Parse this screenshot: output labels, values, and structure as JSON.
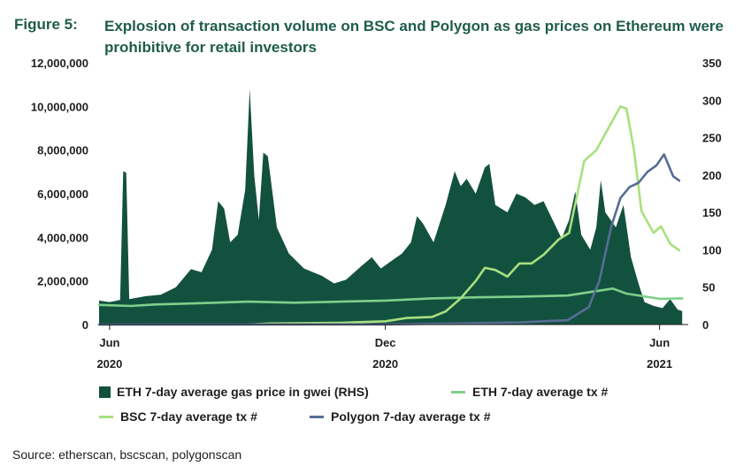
{
  "figure": {
    "label": "Figure 5:",
    "title": "Explosion of transaction volume on BSC and Polygon as gas prices on Ethereum were prohibitive for retail investors"
  },
  "source": "Source: etherscan, bscscan, polygonscan",
  "colors": {
    "gas": "#13513f",
    "eth": "#7fcf8a",
    "bsc": "#a9e07f",
    "polygon": "#566e94"
  },
  "chart_data": {
    "type": "area",
    "x_type": "date",
    "x_range": [
      "2020-05-25",
      "2021-06-20"
    ],
    "x_ticks": [
      {
        "date": "2020-06-01",
        "line1": "Jun",
        "line2": "2020"
      },
      {
        "date": "2020-12-01",
        "line1": "Dec",
        "line2": "2020"
      },
      {
        "date": "2021-06-01",
        "line1": "Jun",
        "line2": "2021"
      }
    ],
    "y_left": {
      "range": [
        0,
        12000000
      ],
      "ticks": [
        "0",
        "2,000,000",
        "4,000,000",
        "6,000,000",
        "8,000,000",
        "10,000,000",
        "12,000,000"
      ]
    },
    "y_right": {
      "range": [
        0,
        350
      ],
      "ticks": [
        "0",
        "50",
        "100",
        "150",
        "200",
        "250",
        "300",
        "350"
      ]
    },
    "grid": false,
    "legend_position": "bottom",
    "series": [
      {
        "name": "ETH 7-day average gas price in gwei (RHS)",
        "axis": "right",
        "style": "area",
        "color": "#13513f",
        "points": [
          [
            "2020-05-25",
            32
          ],
          [
            "2020-06-01",
            30
          ],
          [
            "2020-06-08",
            33
          ],
          [
            "2020-06-10",
            205
          ],
          [
            "2020-06-12",
            203
          ],
          [
            "2020-06-14",
            34
          ],
          [
            "2020-06-25",
            38
          ],
          [
            "2020-07-05",
            40
          ],
          [
            "2020-07-15",
            50
          ],
          [
            "2020-07-25",
            74
          ],
          [
            "2020-08-01",
            70
          ],
          [
            "2020-08-08",
            100
          ],
          [
            "2020-08-12",
            165
          ],
          [
            "2020-08-16",
            155
          ],
          [
            "2020-08-20",
            110
          ],
          [
            "2020-08-25",
            120
          ],
          [
            "2020-08-30",
            180
          ],
          [
            "2020-09-02",
            315
          ],
          [
            "2020-09-05",
            200
          ],
          [
            "2020-09-08",
            140
          ],
          [
            "2020-09-11",
            230
          ],
          [
            "2020-09-14",
            225
          ],
          [
            "2020-09-20",
            130
          ],
          [
            "2020-09-28",
            95
          ],
          [
            "2020-10-08",
            75
          ],
          [
            "2020-10-20",
            65
          ],
          [
            "2020-10-28",
            55
          ],
          [
            "2020-11-05",
            60
          ],
          [
            "2020-11-15",
            78
          ],
          [
            "2020-11-22",
            90
          ],
          [
            "2020-11-28",
            75
          ],
          [
            "2020-12-05",
            85
          ],
          [
            "2020-12-12",
            95
          ],
          [
            "2020-12-18",
            110
          ],
          [
            "2020-12-22",
            145
          ],
          [
            "2020-12-26",
            135
          ],
          [
            "2021-01-02",
            110
          ],
          [
            "2021-01-10",
            160
          ],
          [
            "2021-01-16",
            205
          ],
          [
            "2021-01-20",
            185
          ],
          [
            "2021-01-24",
            195
          ],
          [
            "2021-01-30",
            175
          ],
          [
            "2021-02-05",
            210
          ],
          [
            "2021-02-08",
            215
          ],
          [
            "2021-02-12",
            160
          ],
          [
            "2021-02-20",
            150
          ],
          [
            "2021-02-26",
            175
          ],
          [
            "2021-03-04",
            170
          ],
          [
            "2021-03-10",
            160
          ],
          [
            "2021-03-16",
            165
          ],
          [
            "2021-03-22",
            140
          ],
          [
            "2021-03-28",
            115
          ],
          [
            "2021-04-02",
            140
          ],
          [
            "2021-04-06",
            178
          ],
          [
            "2021-04-10",
            120
          ],
          [
            "2021-04-16",
            100
          ],
          [
            "2021-04-20",
            130
          ],
          [
            "2021-04-23",
            193
          ],
          [
            "2021-04-26",
            150
          ],
          [
            "2021-05-03",
            130
          ],
          [
            "2021-05-08",
            160
          ],
          [
            "2021-05-13",
            90
          ],
          [
            "2021-05-18",
            55
          ],
          [
            "2021-05-22",
            30
          ],
          [
            "2021-05-28",
            25
          ],
          [
            "2021-06-03",
            22
          ],
          [
            "2021-06-08",
            34
          ],
          [
            "2021-06-13",
            20
          ],
          [
            "2021-06-16",
            18
          ]
        ]
      },
      {
        "name": "ETH 7-day average tx #",
        "axis": "left",
        "style": "line",
        "color": "#7fcf8a",
        "points": [
          [
            "2020-05-25",
            900000
          ],
          [
            "2020-06-15",
            850000
          ],
          [
            "2020-07-01",
            920000
          ],
          [
            "2020-08-01",
            980000
          ],
          [
            "2020-09-01",
            1050000
          ],
          [
            "2020-10-01",
            1000000
          ],
          [
            "2020-11-01",
            1050000
          ],
          [
            "2020-12-01",
            1100000
          ],
          [
            "2021-01-01",
            1200000
          ],
          [
            "2021-02-01",
            1250000
          ],
          [
            "2021-03-01",
            1280000
          ],
          [
            "2021-04-01",
            1330000
          ],
          [
            "2021-05-01",
            1650000
          ],
          [
            "2021-05-10",
            1420000
          ],
          [
            "2021-06-01",
            1180000
          ],
          [
            "2021-06-16",
            1200000
          ]
        ]
      },
      {
        "name": "BSC 7-day average tx #",
        "axis": "left",
        "style": "line",
        "color": "#a9e07f",
        "points": [
          [
            "2020-09-01",
            0
          ],
          [
            "2020-09-15",
            50000
          ],
          [
            "2020-10-01",
            60000
          ],
          [
            "2020-11-01",
            80000
          ],
          [
            "2020-12-01",
            150000
          ],
          [
            "2020-12-15",
            300000
          ],
          [
            "2021-01-01",
            350000
          ],
          [
            "2021-01-10",
            600000
          ],
          [
            "2021-01-20",
            1200000
          ],
          [
            "2021-01-30",
            2000000
          ],
          [
            "2021-02-05",
            2600000
          ],
          [
            "2021-02-12",
            2500000
          ],
          [
            "2021-02-20",
            2200000
          ],
          [
            "2021-02-28",
            2800000
          ],
          [
            "2021-03-08",
            2800000
          ],
          [
            "2021-03-16",
            3200000
          ],
          [
            "2021-03-26",
            3900000
          ],
          [
            "2021-04-02",
            4200000
          ],
          [
            "2021-04-12",
            7500000
          ],
          [
            "2021-04-20",
            8000000
          ],
          [
            "2021-04-28",
            9000000
          ],
          [
            "2021-05-06",
            10000000
          ],
          [
            "2021-05-10",
            9900000
          ],
          [
            "2021-05-15",
            8000000
          ],
          [
            "2021-05-20",
            5200000
          ],
          [
            "2021-05-28",
            4200000
          ],
          [
            "2021-06-02",
            4500000
          ],
          [
            "2021-06-08",
            3700000
          ],
          [
            "2021-06-14",
            3400000
          ]
        ]
      },
      {
        "name": "Polygon 7-day average tx #",
        "axis": "left",
        "style": "line",
        "color": "#566e94",
        "points": [
          [
            "2020-05-25",
            0
          ],
          [
            "2020-12-01",
            10000
          ],
          [
            "2021-01-15",
            50000
          ],
          [
            "2021-03-01",
            100000
          ],
          [
            "2021-04-01",
            200000
          ],
          [
            "2021-04-15",
            800000
          ],
          [
            "2021-04-22",
            2000000
          ],
          [
            "2021-04-30",
            4500000
          ],
          [
            "2021-05-06",
            5800000
          ],
          [
            "2021-05-12",
            6300000
          ],
          [
            "2021-05-18",
            6500000
          ],
          [
            "2021-05-24",
            7000000
          ],
          [
            "2021-05-30",
            7300000
          ],
          [
            "2021-06-04",
            7800000
          ],
          [
            "2021-06-10",
            6800000
          ],
          [
            "2021-06-14",
            6600000
          ]
        ]
      }
    ]
  }
}
